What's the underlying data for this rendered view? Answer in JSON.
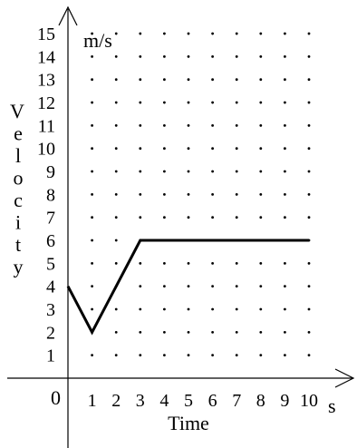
{
  "chart_data": {
    "type": "line",
    "x": [
      0,
      1,
      3,
      10
    ],
    "y": [
      4,
      2,
      6,
      6
    ],
    "xlim": [
      0,
      10
    ],
    "ylim": [
      0,
      15
    ],
    "x_ticks": [
      "1",
      "2",
      "3",
      "4",
      "5",
      "6",
      "7",
      "8",
      "9",
      "10"
    ],
    "y_ticks": [
      "1",
      "2",
      "3",
      "4",
      "5",
      "6",
      "7",
      "8",
      "9",
      "10",
      "11",
      "12",
      "13",
      "14",
      "15"
    ],
    "origin_label": "0",
    "xlabel": "Time",
    "x_unit": "s",
    "ylabel": "Velocity",
    "y_unit": "m/s",
    "grid": "dotted",
    "line_color": "#000000"
  }
}
